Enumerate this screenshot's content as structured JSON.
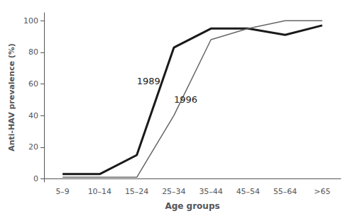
{
  "chart_data": {
    "type": "line",
    "categories": [
      "5–9",
      "10–14",
      "15–24",
      "25–34",
      "35–44",
      "45–54",
      "55–64",
      ">65"
    ],
    "series": [
      {
        "name": "1989",
        "color": "#1a1a1a",
        "values": [
          3,
          3,
          15,
          83,
          95,
          95,
          91,
          97
        ]
      },
      {
        "name": "1996",
        "color": "#666666",
        "values": [
          1,
          1,
          1,
          40,
          88,
          95,
          100,
          100
        ]
      }
    ],
    "annotations": [
      {
        "text": "1989",
        "x": 1.85,
        "y": 62,
        "color": "#1a1a1a"
      },
      {
        "text": "1996",
        "x": 3.1,
        "y": 50,
        "color": "#1a1a1a"
      }
    ],
    "xlabel": "Age groups",
    "ylabel": "Anti-HAV prevalence (%)",
    "ylim": [
      -2,
      105
    ],
    "yticks": [
      0,
      20,
      40,
      60,
      80,
      100
    ],
    "grid": false
  }
}
